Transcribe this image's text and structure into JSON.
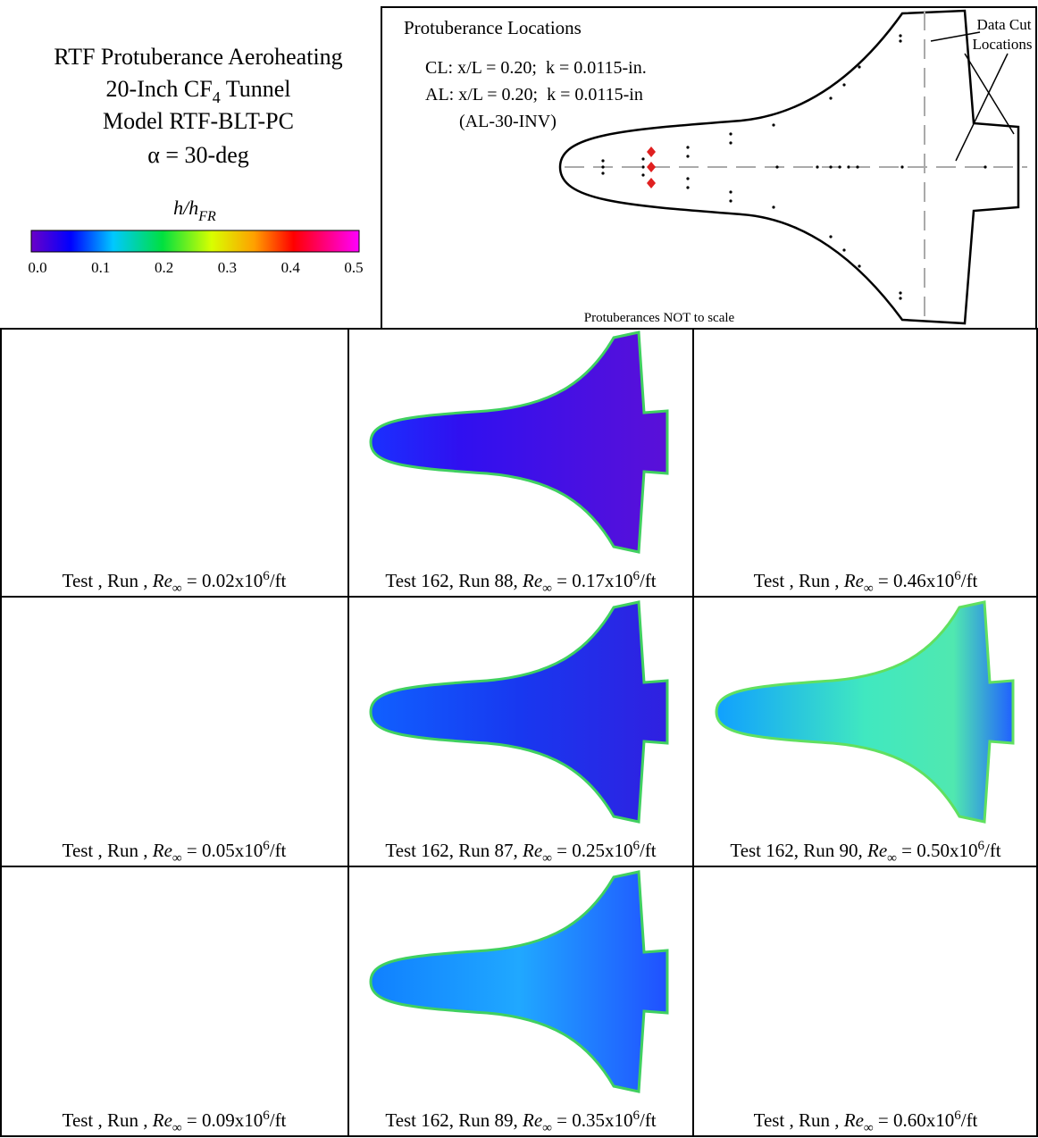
{
  "title": {
    "line1": "RTF Protuberance Aeroheating",
    "line2": "20-Inch CF",
    "line2_sub": "4",
    "line2_end": " Tunnel",
    "line3": "Model RTF-BLT-PC",
    "line4": "α = 30-deg"
  },
  "colorbar": {
    "label": "h/h",
    "label_sub": "FR",
    "ticks": [
      "0.0",
      "0.1",
      "0.2",
      "0.3",
      "0.4",
      "0.5"
    ]
  },
  "diagram": {
    "title": "Protuberance Locations",
    "cl": "CL: x/L = 0.20;  k = 0.0115-in.",
    "al": "AL: x/L = 0.20;  k = 0.0115-in",
    "al_id": "(AL-30-INV)",
    "cut_line1": "Data Cut",
    "cut_line2": "Locations",
    "note": "Protuberances NOT to scale"
  },
  "panels": [
    {
      "prefix": "Test , Run , ",
      "re": "Re",
      "sub": "∞",
      "value": " = 0.02x10",
      "exp": "6",
      "unit": "/ft"
    },
    {
      "prefix": "Test 162, Run 88, ",
      "re": "Re",
      "sub": "∞",
      "value": " = 0.17x10",
      "exp": "6",
      "unit": "/ft"
    },
    {
      "prefix": "Test , Run , ",
      "re": "Re",
      "sub": "∞",
      "value": " = 0.46x10",
      "exp": "6",
      "unit": "/ft"
    },
    {
      "prefix": "Test , Run , ",
      "re": "Re",
      "sub": "∞",
      "value": " = 0.05x10",
      "exp": "6",
      "unit": "/ft"
    },
    {
      "prefix": "Test 162, Run 87, ",
      "re": "Re",
      "sub": "∞",
      "value": " = 0.25x10",
      "exp": "6",
      "unit": "/ft"
    },
    {
      "prefix": "Test 162, Run 90, ",
      "re": "Re",
      "sub": "∞",
      "value": " = 0.50x10",
      "exp": "6",
      "unit": "/ft"
    },
    {
      "prefix": "Test , Run , ",
      "re": "Re",
      "sub": "∞",
      "value": " = 0.09x10",
      "exp": "6",
      "unit": "/ft"
    },
    {
      "prefix": "Test 162, Run 89, ",
      "re": "Re",
      "sub": "∞",
      "value": " = 0.35x10",
      "exp": "6",
      "unit": "/ft"
    },
    {
      "prefix": "Test , Run , ",
      "re": "Re",
      "sub": "∞",
      "value": " = 0.60x10",
      "exp": "6",
      "unit": "/ft"
    }
  ]
}
